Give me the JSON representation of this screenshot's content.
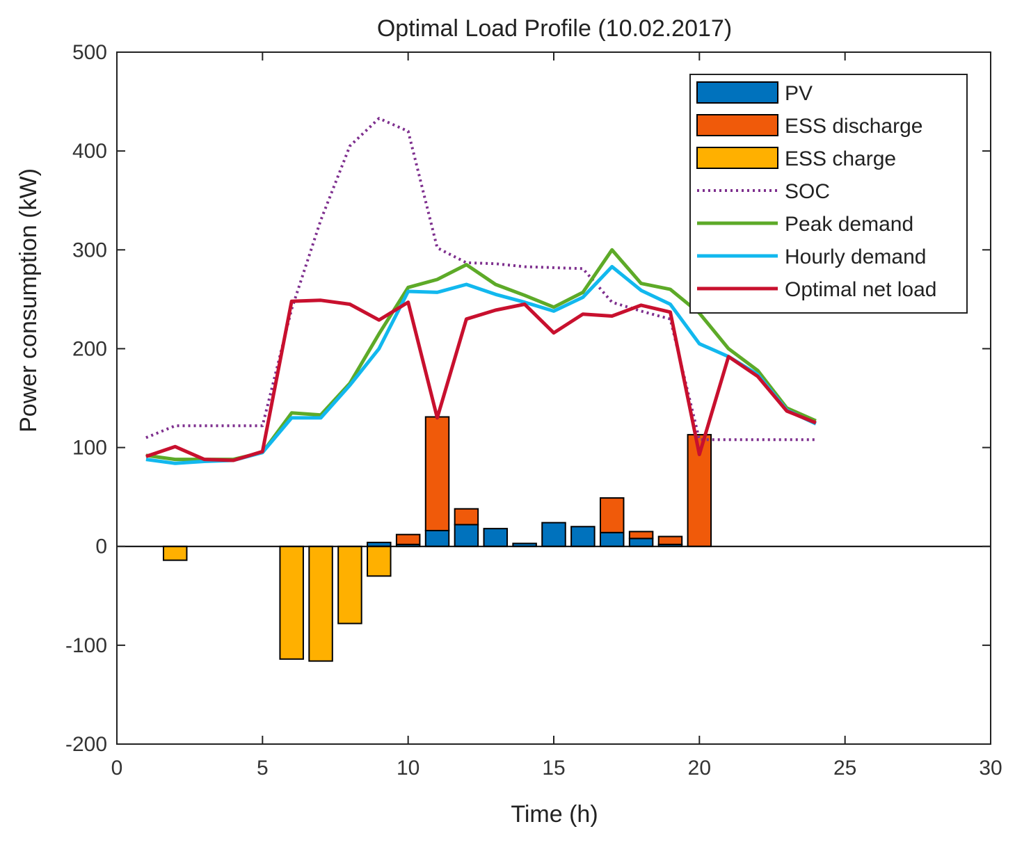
{
  "chart_data": {
    "type": "bar",
    "title": "Optimal Load Profile (10.02.2017)",
    "xlabel": "Time (h)",
    "ylabel": "Power consumption (kW)",
    "xlim": [
      0,
      30
    ],
    "ylim": [
      -200,
      500
    ],
    "xticks": [
      "0",
      "5",
      "10",
      "15",
      "20",
      "25",
      "30"
    ],
    "yticks": [
      "-200",
      "-100",
      "0",
      "100",
      "200",
      "300",
      "400",
      "500"
    ],
    "legend_position": "top-right",
    "colors": {
      "pv": "#0072BD",
      "ess_discharge": "#F05A0A",
      "ess_charge": "#FFB000",
      "soc": "#7E2F8E",
      "peak_demand": "#5DAA28",
      "hourly_demand": "#12B8EE",
      "optimal_net_load": "#C8102E"
    },
    "legend": [
      "PV",
      "ESS discharge",
      "ESS charge",
      "SOC",
      "Peak demand",
      "Hourly demand",
      "Optimal net load"
    ],
    "x": [
      1,
      2,
      3,
      4,
      5,
      6,
      7,
      8,
      9,
      10,
      11,
      12,
      13,
      14,
      15,
      16,
      17,
      18,
      19,
      20,
      21,
      22,
      23,
      24
    ],
    "bars": [
      {
        "name": "PV",
        "values": [
          0,
          0,
          0,
          0,
          0,
          0,
          0,
          0,
          4,
          2,
          16,
          22,
          18,
          3,
          24,
          20,
          14,
          8,
          2,
          0,
          0,
          0,
          0,
          0
        ]
      },
      {
        "name": "ESS discharge",
        "values": [
          0,
          0,
          0,
          0,
          0,
          0,
          0,
          0,
          0,
          10,
          115,
          16,
          0,
          0,
          0,
          0,
          35,
          7,
          8,
          113,
          0,
          0,
          0,
          0
        ]
      },
      {
        "name": "ESS charge",
        "values": [
          0,
          -14,
          0,
          0,
          0,
          -114,
          -116,
          -78,
          -30,
          0,
          0,
          0,
          0,
          0,
          0,
          0,
          0,
          0,
          0,
          0,
          0,
          0,
          0,
          0
        ]
      }
    ],
    "series": [
      {
        "name": "SOC",
        "style": "dotted",
        "values": [
          110,
          122,
          122,
          122,
          122,
          240,
          330,
          405,
          433,
          420,
          302,
          287,
          286,
          283,
          282,
          281,
          247,
          238,
          230,
          108,
          108,
          108,
          108,
          108
        ]
      },
      {
        "name": "Peak demand",
        "style": "solid",
        "values": [
          92,
          88,
          88,
          88,
          95,
          135,
          133,
          165,
          215,
          262,
          270,
          285,
          265,
          254,
          242,
          257,
          300,
          266,
          260,
          236,
          200,
          178,
          140,
          127
        ]
      },
      {
        "name": "Hourly demand",
        "style": "solid",
        "values": [
          88,
          84,
          86,
          87,
          95,
          130,
          130,
          163,
          200,
          258,
          257,
          265,
          255,
          247,
          238,
          252,
          283,
          259,
          245,
          205,
          192,
          174,
          138,
          124
        ]
      },
      {
        "name": "Optimal net load",
        "style": "solid",
        "values": [
          91,
          101,
          88,
          87,
          96,
          248,
          249,
          245,
          229,
          247,
          130,
          230,
          239,
          245,
          216,
          235,
          233,
          244,
          237,
          93,
          192,
          172,
          137,
          125
        ]
      }
    ]
  }
}
